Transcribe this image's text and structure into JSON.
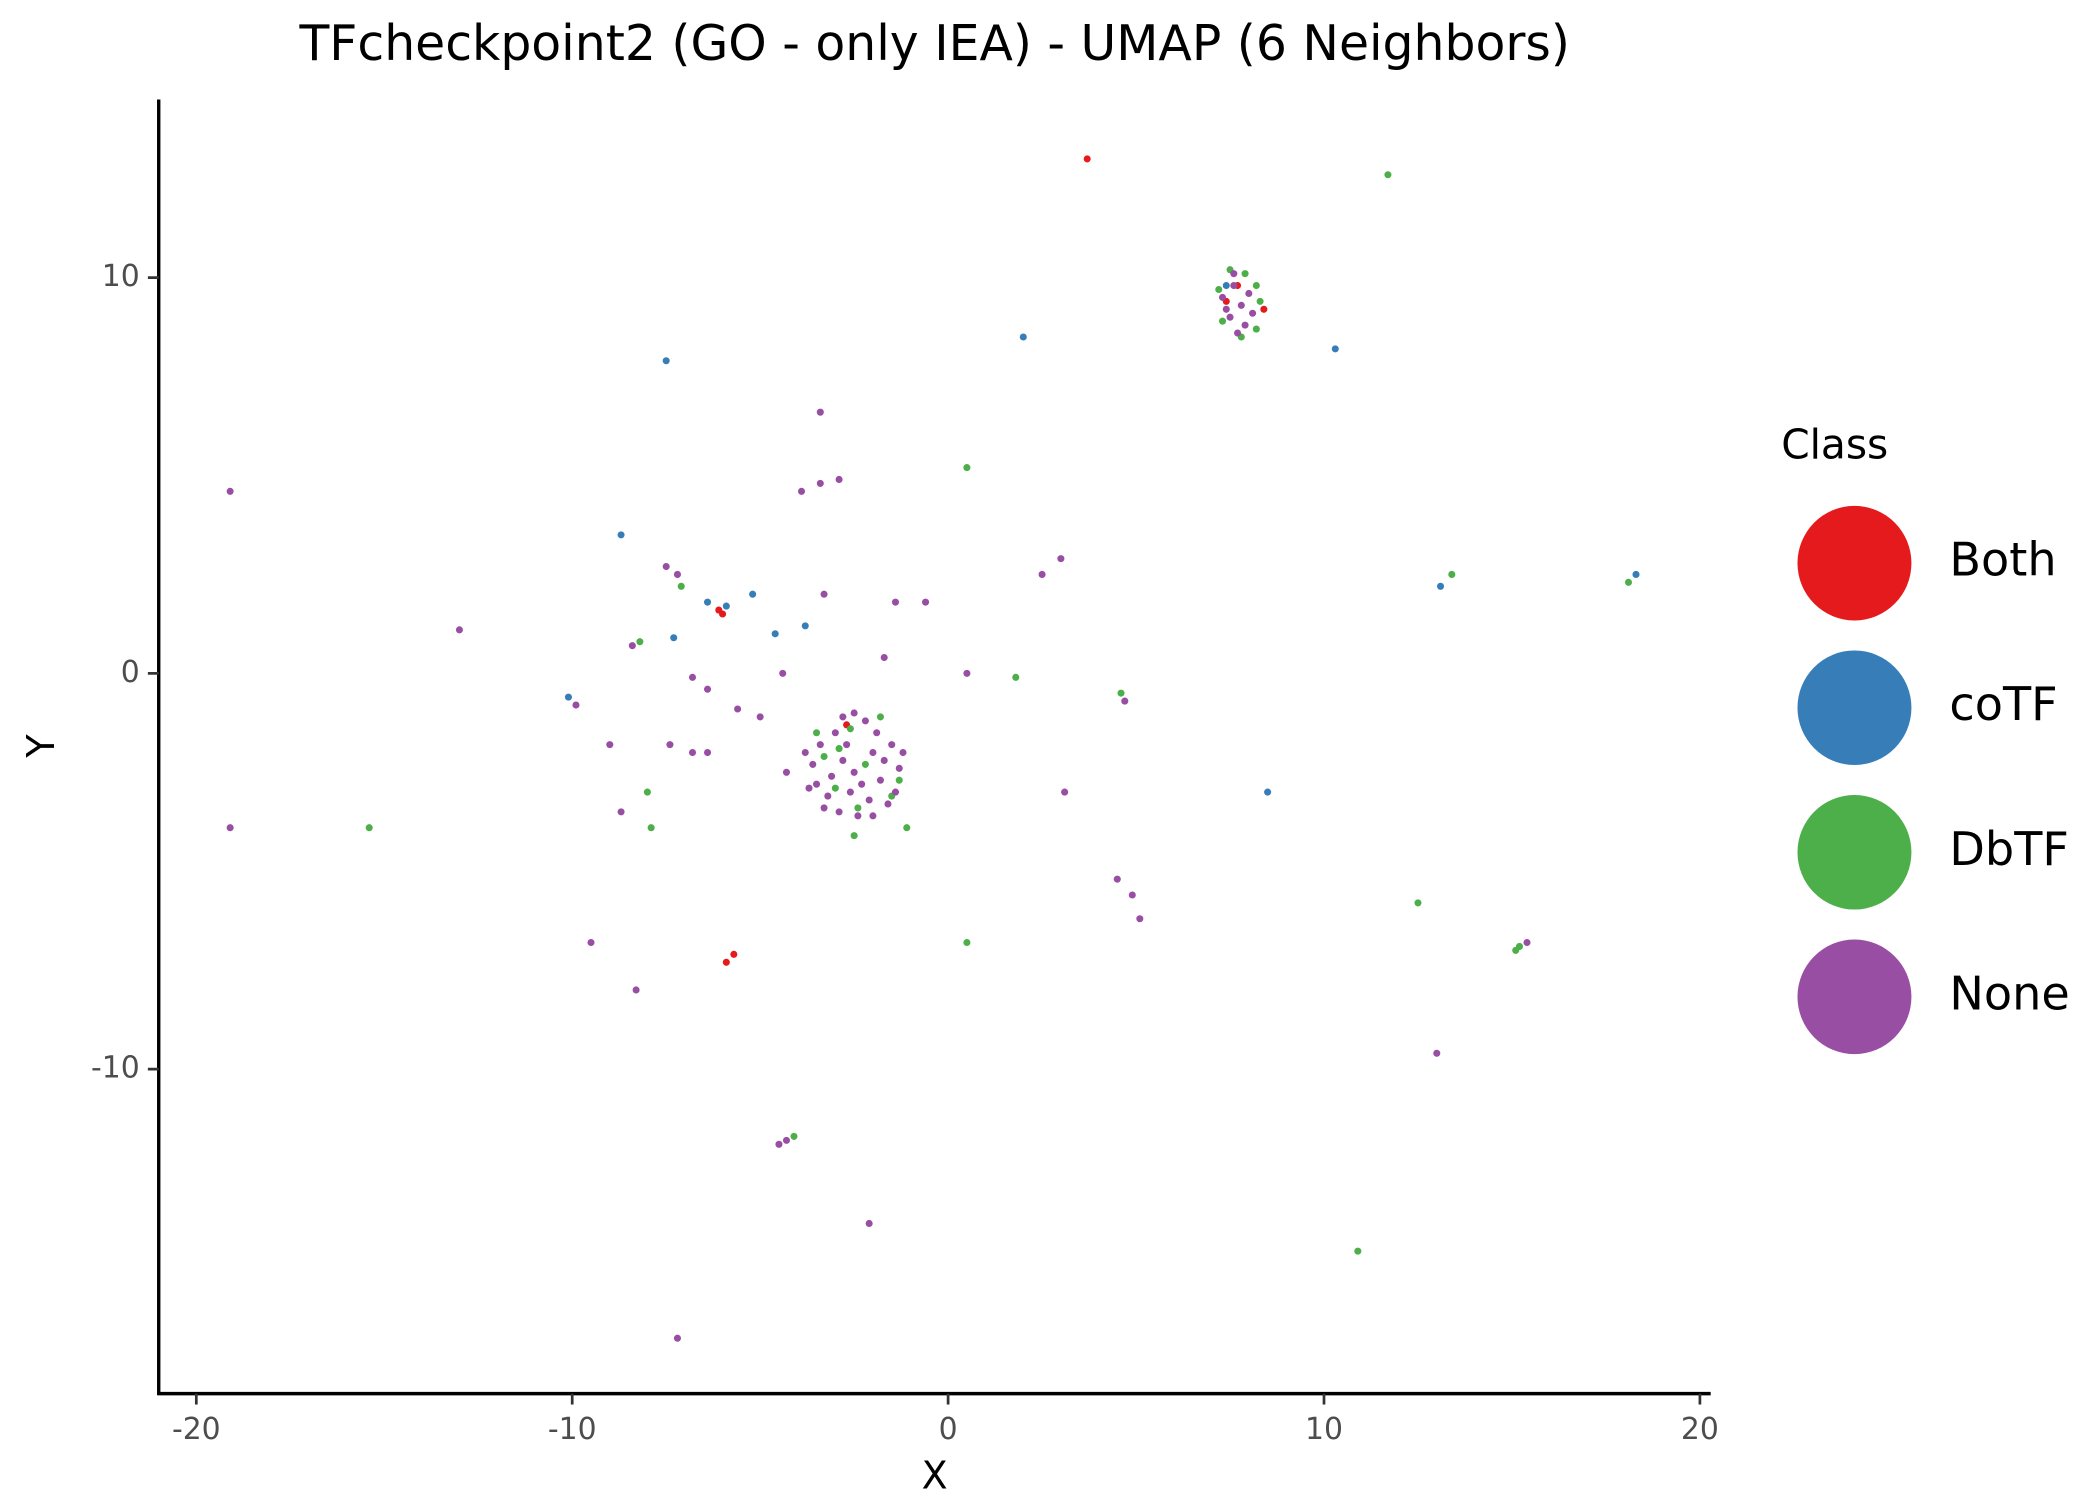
{
  "chart_data": {
    "type": "scatter",
    "title": "TFcheckpoint2 (GO - only IEA) - UMAP (6 Neighbors)",
    "x_label": "X",
    "y_label": "Y",
    "legend_title": "Class",
    "xlim": [
      -21.0,
      20.25
    ],
    "ylim": [
      -18.2,
      14.5
    ],
    "xticks": [
      -20,
      -10,
      0,
      10,
      20
    ],
    "yticks": [
      -10,
      0,
      10
    ],
    "legend_position": "right",
    "series": [
      {
        "name": "Both",
        "color": "#e41a1c",
        "x": [
          3.7,
          -6.1,
          -6.0,
          -5.7,
          -5.9,
          -2.7,
          7.4,
          8.4,
          7.7
        ],
        "values": [
          13.0,
          1.6,
          1.5,
          -7.1,
          -7.3,
          -1.3,
          9.4,
          9.2,
          9.8
        ]
      },
      {
        "name": "coTF",
        "color": "#377eb8",
        "x": [
          -7.5,
          2.0,
          10.3,
          -8.7,
          -6.4,
          -5.2,
          -5.9,
          -7.3,
          -10.1,
          -4.6,
          -3.8,
          13.1,
          8.5,
          18.3,
          7.4
        ],
        "values": [
          7.9,
          8.5,
          8.2,
          3.5,
          1.8,
          2.0,
          1.7,
          0.9,
          -0.6,
          1.0,
          1.2,
          2.2,
          -3.0,
          2.5,
          9.8
        ]
      },
      {
        "name": "DbTF",
        "color": "#4daf4a",
        "x": [
          11.7,
          10.9,
          -15.4,
          -7.9,
          -8.0,
          15.1,
          15.2,
          18.1,
          12.5,
          0.5,
          0.5,
          -4.1,
          -2.5,
          -1.1,
          -8.2,
          -7.1,
          1.8,
          13.4,
          4.6,
          -3.5,
          -3.0,
          -2.6,
          -2.2,
          -1.8,
          -1.5,
          -3.3,
          -2.4,
          -1.3,
          -2.9,
          7.2,
          7.5,
          7.9,
          8.2,
          8.3,
          7.8,
          8.2,
          7.3
        ],
        "values": [
          12.6,
          -14.6,
          -3.9,
          -3.9,
          -3.0,
          -7.0,
          -6.9,
          2.3,
          -5.8,
          -6.8,
          5.2,
          -11.7,
          -4.1,
          -3.9,
          0.8,
          2.2,
          -0.1,
          2.5,
          -0.5,
          -1.5,
          -2.9,
          -1.4,
          -2.3,
          -1.1,
          -3.1,
          -2.1,
          -3.4,
          -2.7,
          -1.9,
          9.7,
          10.2,
          10.1,
          9.8,
          9.4,
          8.5,
          8.7,
          8.9
        ]
      },
      {
        "name": "None",
        "color": "#984ea3",
        "x": [
          -19.1,
          -19.1,
          -13.0,
          -9.5,
          -8.3,
          -9.0,
          -8.7,
          -7.2,
          -2.1,
          13.0,
          3.1,
          -3.4,
          -3.9,
          -3.4,
          -2.9,
          -1.4,
          -0.6,
          -1.7,
          -3.3,
          2.5,
          3.0,
          -7.2,
          -7.5,
          -8.4,
          -6.8,
          -6.4,
          -7.4,
          -6.8,
          -5.6,
          -5.0,
          -4.4,
          -4.3,
          0.5,
          4.7,
          4.5,
          4.9,
          5.1,
          -4.5,
          -4.3,
          15.4,
          -9.9,
          -6.4,
          -3.8,
          -3.5,
          -3.3,
          -3.0,
          -2.8,
          -2.6,
          -2.4,
          -2.2,
          -2.0,
          -1.8,
          -1.6,
          -1.5,
          -1.3,
          -3.6,
          -3.1,
          -2.9,
          -2.5,
          -2.3,
          -2.1,
          -1.9,
          -1.7,
          -1.4,
          -3.4,
          -2.7,
          -2.5,
          -3.2,
          -2.0,
          -3.7,
          -1.2,
          -2.8,
          7.3,
          7.5,
          7.6,
          7.8,
          7.9,
          8.0,
          7.4,
          7.7,
          8.1,
          7.6
        ],
        "values": [
          4.6,
          -3.9,
          1.1,
          -6.8,
          -8.0,
          -1.8,
          -3.5,
          -16.8,
          -13.9,
          -9.6,
          -3.0,
          6.6,
          4.6,
          4.8,
          4.9,
          1.8,
          1.8,
          0.4,
          2.0,
          2.5,
          2.9,
          2.5,
          2.7,
          0.7,
          -0.1,
          -0.4,
          -1.8,
          -2.0,
          -0.9,
          -1.1,
          0.0,
          -2.5,
          0.0,
          -0.7,
          -5.2,
          -5.6,
          -6.2,
          -11.9,
          -11.8,
          -6.8,
          -0.8,
          -2.0,
          -2.0,
          -2.8,
          -3.4,
          -1.5,
          -2.2,
          -3.0,
          -3.6,
          -1.2,
          -2.0,
          -2.7,
          -3.3,
          -1.8,
          -2.4,
          -2.3,
          -2.6,
          -3.5,
          -1.0,
          -2.8,
          -3.2,
          -1.5,
          -2.2,
          -3.0,
          -1.8,
          -1.8,
          -2.5,
          -3.1,
          -3.6,
          -2.9,
          -2.0,
          -1.1,
          9.5,
          9.0,
          9.8,
          9.3,
          8.8,
          9.6,
          9.2,
          8.6,
          9.1,
          10.1
        ]
      }
    ]
  }
}
